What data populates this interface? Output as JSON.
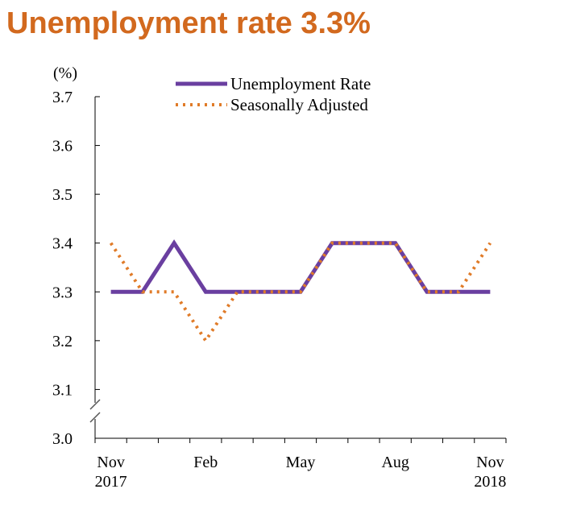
{
  "page": {
    "title": "Unemployment rate 3.3%"
  },
  "chart_data": {
    "type": "line",
    "unit_label": "(%)",
    "x_index": [
      0,
      1,
      2,
      3,
      4,
      5,
      6,
      7,
      8,
      9,
      10,
      11,
      12
    ],
    "x_tick_labels": [
      {
        "i": 0,
        "lines": [
          "Nov",
          "2017"
        ]
      },
      {
        "i": 3,
        "lines": [
          "Feb"
        ]
      },
      {
        "i": 6,
        "lines": [
          "May"
        ]
      },
      {
        "i": 9,
        "lines": [
          "Aug"
        ]
      },
      {
        "i": 12,
        "lines": [
          "Nov",
          "2018"
        ]
      }
    ],
    "ylim": [
      3.0,
      3.7
    ],
    "y_ticks": [
      "3.0",
      "3.1",
      "3.2",
      "3.3",
      "3.4",
      "3.5",
      "3.6",
      "3.7"
    ],
    "axis_break": true,
    "legend_position": "top",
    "series": [
      {
        "name": "Unemployment Rate",
        "style": "solid",
        "color": "#6a3fa0",
        "values": [
          3.3,
          3.3,
          3.4,
          3.3,
          3.3,
          3.3,
          3.3,
          3.4,
          3.4,
          3.4,
          3.3,
          3.3,
          3.3
        ]
      },
      {
        "name": "Seasonally Adjusted",
        "style": "dotted",
        "color": "#e07b28",
        "values": [
          3.4,
          3.3,
          3.3,
          3.2,
          3.3,
          3.3,
          3.3,
          3.4,
          3.4,
          3.4,
          3.3,
          3.3,
          3.4
        ]
      }
    ]
  }
}
